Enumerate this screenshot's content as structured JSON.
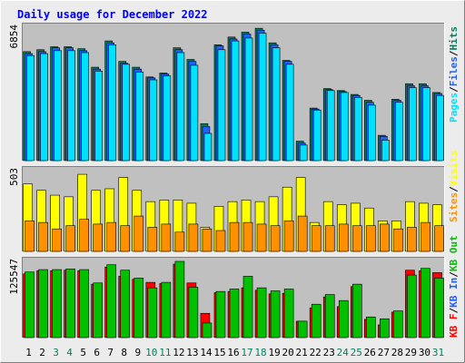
{
  "colors": {
    "background": "#ececec",
    "plot_background": "#c0c0c0",
    "title": "#0000ff",
    "axis_text": "#000000",
    "weekend_day": "#00805c",
    "hits": "#008060",
    "files": "#2060ff",
    "pages": "#00e0ff",
    "visits": "#ffff00",
    "sites": "#ff9000",
    "kb_in": "#00e000",
    "kb_out": "#00c000",
    "kb_f": "#ff0000"
  },
  "chart_data": {
    "type": "bar",
    "title": "Daily usage for December 2022",
    "days": [
      "1",
      "2",
      "3",
      "4",
      "5",
      "6",
      "7",
      "8",
      "9",
      "10",
      "11",
      "12",
      "13",
      "14",
      "15",
      "16",
      "17",
      "18",
      "19",
      "20",
      "21",
      "22",
      "23",
      "24",
      "25",
      "26",
      "27",
      "28",
      "29",
      "30",
      "31"
    ],
    "weekend_days": [
      "3",
      "4",
      "10",
      "11",
      "17",
      "18",
      "24",
      "25",
      "31"
    ],
    "legends": {
      "top": [
        {
          "label": "Pages",
          "key": "pages"
        },
        {
          "label": "/",
          "key": "axis_text"
        },
        {
          "label": "Files",
          "key": "files"
        },
        {
          "label": "/",
          "key": "axis_text"
        },
        {
          "label": "Hits",
          "key": "hits"
        }
      ],
      "middle": [
        {
          "label": "Sites",
          "key": "sites"
        },
        {
          "label": "/",
          "key": "axis_text"
        },
        {
          "label": "Visits",
          "key": "visits"
        }
      ],
      "bottom": [
        {
          "label": "KB F",
          "key": "kb_f"
        },
        {
          "label": "/",
          "key": "axis_text"
        },
        {
          "label": "KB In",
          "key": "files"
        },
        {
          "label": "/",
          "key": "axis_text"
        },
        {
          "label": "KB Out",
          "key": "kb_out"
        }
      ]
    },
    "panels": [
      {
        "id": "top",
        "ymax_label": "6854",
        "ymax": 6854,
        "series": [
          {
            "key": "hits",
            "values": [
              5600,
              5700,
              5850,
              5850,
              5750,
              4800,
              6150,
              5100,
              4800,
              4300,
              4500,
              5800,
              5200,
              1900,
              5950,
              6350,
              6600,
              6800,
              6050,
              5150,
              1000,
              2700,
              3700,
              3600,
              3400,
              3100,
              1300,
              3150,
              3950,
              3950,
              3500
            ]
          },
          {
            "key": "files",
            "values": [
              5500,
              5600,
              5800,
              5800,
              5650,
              4700,
              6050,
              5000,
              4700,
              4250,
              4450,
              5700,
              5100,
              1750,
              5900,
              6250,
              6500,
              6700,
              5950,
              5100,
              900,
              2650,
              3650,
              3550,
              3350,
              3000,
              1250,
              3100,
              3850,
              3850,
              3450
            ]
          },
          {
            "key": "pages",
            "values": [
              5400,
              5500,
              5650,
              5650,
              5550,
              4600,
              5950,
              4950,
              4550,
              4150,
              4350,
              5550,
              4900,
              1400,
              5700,
              6150,
              6300,
              6550,
              5800,
              4950,
              800,
              2600,
              3600,
              3500,
              3250,
              2850,
              1050,
              3000,
              3750,
              3750,
              3350
            ]
          }
        ]
      },
      {
        "id": "middle",
        "ymax_label": "503",
        "ymax": 503,
        "series": [
          {
            "key": "visits",
            "values": [
              420,
              380,
              350,
              340,
              480,
              380,
              390,
              460,
              380,
              310,
              320,
              320,
              300,
              150,
              280,
              310,
              320,
              310,
              340,
              400,
              460,
              180,
              310,
              290,
              300,
              270,
              190,
              190,
              310,
              300,
              290
            ]
          },
          {
            "key": "sites",
            "values": [
              190,
              180,
              140,
              160,
              200,
              170,
              180,
              160,
              220,
              150,
              170,
              120,
              170,
              140,
              130,
              180,
              180,
              170,
              160,
              190,
              220,
              160,
              160,
              170,
              160,
              160,
              170,
              140,
              150,
              180,
              160
            ]
          }
        ]
      },
      {
        "id": "bottom",
        "ymax_label": "125547",
        "ymax": 125547,
        "series": [
          {
            "key": "kb_f",
            "values": [
              105000,
              110000,
              110000,
              111000,
              110000,
              88000,
              116000,
              101000,
              96000,
              91000,
              89000,
              121000,
              90000,
              40000,
              74000,
              76000,
              82000,
              78000,
              72000,
              73000,
              27000,
              49000,
              67000,
              51000,
              84000,
              30000,
              21000,
              42000,
              111000,
              110000,
              107000
            ]
          },
          {
            "key": "kb_out",
            "values": [
              108000,
              112000,
              112000,
              113000,
              112000,
              90000,
              120000,
              111000,
              98000,
              82000,
              91000,
              125547,
              83000,
              24000,
              76000,
              80000,
              101000,
              82000,
              77000,
              80000,
              27000,
              55000,
              71000,
              61000,
              88000,
              34000,
              31000,
              44000,
              103000,
              114000,
              98000
            ]
          }
        ]
      }
    ]
  }
}
